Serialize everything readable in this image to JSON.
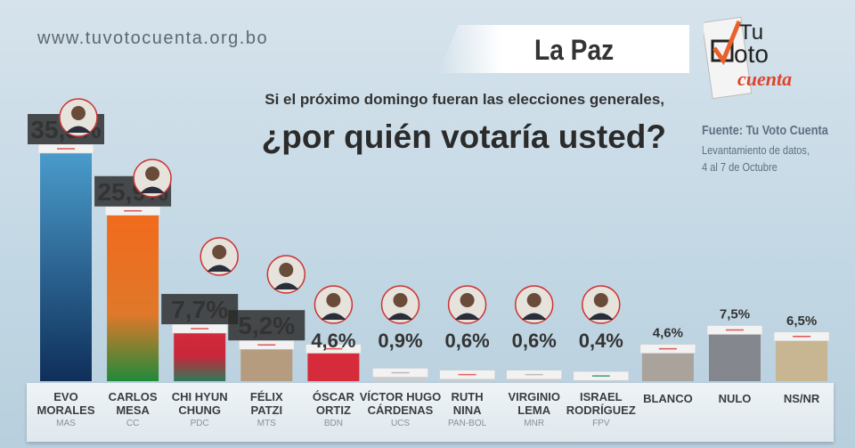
{
  "header": {
    "site": "www.tuvotocuenta.org.bo",
    "region": "La Paz",
    "question_line1": "Si el próximo domingo fueran las elecciones generales,",
    "question_line2": "¿por quién votaría usted?"
  },
  "logo": {
    "text_top": "Tu",
    "text_mid": "Voto",
    "text_script": "cuenta"
  },
  "source": {
    "line1": "Fuente: Tu Voto Cuenta",
    "line2": "Levantamiento de datos,",
    "line3": "4 al 7 de Octubre"
  },
  "colors": {
    "MAS": "#1e5a8c",
    "CC": "#e8702a",
    "PDC": "#c8263a",
    "MTS": "#b59c7e",
    "BDN": "#d52b3a",
    "blanco": "#a9a39b",
    "nulo": "#84878d",
    "nsnr": "#c8b592"
  },
  "chart_data": {
    "type": "bar",
    "unit": "%",
    "ylim": [
      0,
      36
    ],
    "categories": [
      {
        "name1": "EVO",
        "name2": "MORALES",
        "party": "MAS",
        "value": 35.5,
        "label": "35,5%",
        "photo": true
      },
      {
        "name1": "CARLOS",
        "name2": "MESA",
        "party": "CC",
        "value": 25.9,
        "label": "25,9%",
        "photo": true
      },
      {
        "name1": "CHI HYUN",
        "name2": "CHUNG",
        "party": "PDC",
        "value": 7.7,
        "label": "7,7%",
        "photo": true
      },
      {
        "name1": "FÉLIX",
        "name2": "PATZI",
        "party": "MTS",
        "value": 5.2,
        "label": "5,2%",
        "photo": true
      },
      {
        "name1": "ÓSCAR",
        "name2": "ORTIZ",
        "party": "BDN",
        "value": 4.6,
        "label": "4,6%",
        "photo": true
      },
      {
        "name1": "VÍCTOR HUGO",
        "name2": "CÁRDENAS",
        "party": "UCS",
        "value": 0.9,
        "label": "0,9%",
        "photo": true
      },
      {
        "name1": "RUTH",
        "name2": "NINA",
        "party": "PAN-BOL",
        "value": 0.6,
        "label": "0,6%",
        "photo": true
      },
      {
        "name1": "VIRGINIO",
        "name2": "LEMA",
        "party": "MNR",
        "value": 0.6,
        "label": "0,6%",
        "photo": true
      },
      {
        "name1": "ISRAEL",
        "name2": "RODRÍGUEZ",
        "party": "FPV",
        "value": 0.4,
        "label": "0,4%",
        "photo": true
      },
      {
        "name1": "BLANCO",
        "name2": "",
        "party": "",
        "value": 4.6,
        "label": "4,6%",
        "photo": false
      },
      {
        "name1": "NULO",
        "name2": "",
        "party": "",
        "value": 7.5,
        "label": "7,5%",
        "photo": false
      },
      {
        "name1": "NS/NR",
        "name2": "",
        "party": "",
        "value": 6.5,
        "label": "6,5%",
        "photo": false
      }
    ]
  }
}
